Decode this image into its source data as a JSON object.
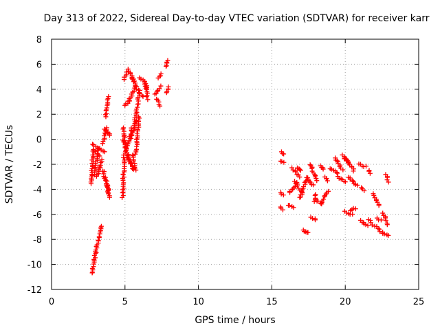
{
  "chart_data": {
    "type": "scatter",
    "title": "Day 313 of 2022, Sidereal Day-to-day VTEC variation (SDTVAR) for receiver karr",
    "xlabel": "GPS time / hours",
    "ylabel": "SDTVAR / TECUs",
    "xlim": [
      0,
      25
    ],
    "ylim": [
      -12,
      8
    ],
    "xticks": [
      0,
      5,
      10,
      15,
      20,
      25
    ],
    "yticks": [
      -12,
      -10,
      -8,
      -6,
      -4,
      -2,
      0,
      2,
      4,
      6,
      8
    ],
    "xtick_labels": [
      "0",
      "5",
      "10",
      "15",
      "20",
      "25"
    ],
    "ytick_labels": [
      "-12",
      "-10",
      "-8",
      "-6",
      "-4",
      "-2",
      "0",
      "2",
      "4",
      "6",
      "8"
    ],
    "grid": true,
    "marker": "+",
    "colors": {
      "points": "#ff0000",
      "grid": "#a0a0a0",
      "axes": "#000000"
    },
    "segments": [
      {
        "x": [
          2.75,
          3.0
        ],
        "y": [
          -10.7,
          -9.0
        ]
      },
      {
        "x": [
          3.0,
          3.4
        ],
        "y": [
          -9.0,
          -6.9
        ]
      },
      {
        "x": [
          2.7,
          2.85
        ],
        "y": [
          -3.6,
          -0.8
        ]
      },
      {
        "x": [
          2.85,
          3.3
        ],
        "y": [
          -0.8,
          -1.3
        ]
      },
      {
        "x": [
          2.8,
          3.6
        ],
        "y": [
          -0.4,
          -1.0
        ]
      },
      {
        "x": [
          2.9,
          3.2
        ],
        "y": [
          -2.8,
          -0.8
        ]
      },
      {
        "x": [
          3.1,
          3.45
        ],
        "y": [
          -3.0,
          -1.6
        ]
      },
      {
        "x": [
          3.5,
          3.75
        ],
        "y": [
          -0.3,
          0.9
        ]
      },
      {
        "x": [
          3.6,
          4.0
        ],
        "y": [
          0.8,
          0.3
        ]
      },
      {
        "x": [
          3.5,
          3.95
        ],
        "y": [
          -2.5,
          -4.6
        ]
      },
      {
        "x": [
          3.7,
          3.9
        ],
        "y": [
          -3.1,
          -4.3
        ]
      },
      {
        "x": [
          3.7,
          3.85
        ],
        "y": [
          1.8,
          3.4
        ]
      },
      {
        "x": [
          4.85,
          4.95
        ],
        "y": [
          -4.6,
          -1.3
        ]
      },
      {
        "x": [
          4.85,
          5.1
        ],
        "y": [
          0.9,
          -0.9
        ]
      },
      {
        "x": [
          4.9,
          5.5
        ],
        "y": [
          -0.1,
          -2.3
        ]
      },
      {
        "x": [
          5.0,
          5.6
        ],
        "y": [
          -1.0,
          -2.4
        ]
      },
      {
        "x": [
          5.2,
          5.45
        ],
        "y": [
          -0.5,
          0.9
        ]
      },
      {
        "x": [
          5.45,
          5.75
        ],
        "y": [
          0.1,
          1.5
        ]
      },
      {
        "x": [
          5.5,
          5.7
        ],
        "y": [
          -1.2,
          -2.5
        ]
      },
      {
        "x": [
          5.75,
          5.95
        ],
        "y": [
          -1.2,
          1.8
        ]
      },
      {
        "x": [
          5.65,
          6.0
        ],
        "y": [
          1.3,
          3.9
        ]
      },
      {
        "x": [
          5.0,
          5.3
        ],
        "y": [
          2.7,
          3.1
        ]
      },
      {
        "x": [
          5.3,
          5.7
        ],
        "y": [
          3.1,
          4.3
        ]
      },
      {
        "x": [
          4.9,
          5.2
        ],
        "y": [
          4.8,
          5.5
        ]
      },
      {
        "x": [
          5.2,
          5.6
        ],
        "y": [
          5.6,
          4.7
        ]
      },
      {
        "x": [
          5.5,
          5.8
        ],
        "y": [
          4.9,
          4.2
        ]
      },
      {
        "x": [
          5.8,
          6.2
        ],
        "y": [
          4.0,
          3.4
        ]
      },
      {
        "x": [
          6.0,
          6.3
        ],
        "y": [
          4.9,
          4.6
        ]
      },
      {
        "x": [
          6.3,
          6.45
        ],
        "y": [
          4.6,
          4.0
        ]
      },
      {
        "x": [
          6.45,
          6.5
        ],
        "y": [
          4.4,
          3.2
        ]
      },
      {
        "x": [
          7.0,
          7.4
        ],
        "y": [
          3.6,
          4.2
        ]
      },
      {
        "x": [
          7.2,
          7.4
        ],
        "y": [
          3.2,
          2.7
        ]
      },
      {
        "x": [
          7.3,
          7.5
        ],
        "y": [
          4.9,
          5.2
        ]
      },
      {
        "x": [
          7.8,
          7.9
        ],
        "y": [
          5.8,
          6.3
        ]
      },
      {
        "x": [
          7.85,
          7.95
        ],
        "y": [
          3.7,
          4.2
        ]
      },
      {
        "x": [
          15.7,
          15.85
        ],
        "y": [
          -1.0,
          -1.2
        ]
      },
      {
        "x": [
          15.65,
          15.8
        ],
        "y": [
          -1.7,
          -1.9
        ]
      },
      {
        "x": [
          15.6,
          15.75
        ],
        "y": [
          -4.2,
          -4.5
        ]
      },
      {
        "x": [
          15.6,
          15.75
        ],
        "y": [
          -5.4,
          -5.6
        ]
      },
      {
        "x": [
          16.2,
          16.7
        ],
        "y": [
          -4.3,
          -3.5
        ]
      },
      {
        "x": [
          16.6,
          17.1
        ],
        "y": [
          -3.4,
          -4.4
        ]
      },
      {
        "x": [
          16.4,
          16.9
        ],
        "y": [
          -2.3,
          -3.0
        ]
      },
      {
        "x": [
          16.7,
          17.0
        ],
        "y": [
          -2.3,
          -2.5
        ]
      },
      {
        "x": [
          16.9,
          17.4
        ],
        "y": [
          -4.7,
          -3.1
        ]
      },
      {
        "x": [
          17.4,
          17.8
        ],
        "y": [
          -3.1,
          -3.7
        ]
      },
      {
        "x": [
          17.6,
          18.1
        ],
        "y": [
          -2.0,
          -3.3
        ]
      },
      {
        "x": [
          17.9,
          18.0
        ],
        "y": [
          -5.0,
          -4.4
        ]
      },
      {
        "x": [
          18.0,
          18.4
        ],
        "y": [
          -4.8,
          -5.2
        ]
      },
      {
        "x": [
          18.3,
          18.8
        ],
        "y": [
          -5.1,
          -4.2
        ]
      },
      {
        "x": [
          18.3,
          18.5
        ],
        "y": [
          -2.1,
          -2.4
        ]
      },
      {
        "x": [
          18.6,
          18.8
        ],
        "y": [
          -3.0,
          -3.3
        ]
      },
      {
        "x": [
          17.7,
          18.0
        ],
        "y": [
          -6.2,
          -6.4
        ]
      },
      {
        "x": [
          17.1,
          17.5
        ],
        "y": [
          -7.3,
          -7.5
        ]
      },
      {
        "x": [
          19.0,
          19.5
        ],
        "y": [
          -2.3,
          -2.7
        ]
      },
      {
        "x": [
          19.3,
          19.8
        ],
        "y": [
          -1.5,
          -2.4
        ]
      },
      {
        "x": [
          19.5,
          20.0
        ],
        "y": [
          -3.0,
          -3.4
        ]
      },
      {
        "x": [
          19.8,
          20.2
        ],
        "y": [
          -1.3,
          -1.8
        ]
      },
      {
        "x": [
          20.0,
          20.6
        ],
        "y": [
          -1.5,
          -2.5
        ]
      },
      {
        "x": [
          20.2,
          20.8
        ],
        "y": [
          -3.0,
          -3.7
        ]
      },
      {
        "x": [
          20.0,
          20.5
        ],
        "y": [
          -5.8,
          -6.0
        ]
      },
      {
        "x": [
          20.4,
          20.7
        ],
        "y": [
          -5.7,
          -5.5
        ]
      },
      {
        "x": [
          20.9,
          21.4
        ],
        "y": [
          -2.0,
          -2.2
        ]
      },
      {
        "x": [
          21.1,
          21.3
        ],
        "y": [
          -3.9,
          -4.1
        ]
      },
      {
        "x": [
          21.0,
          21.5
        ],
        "y": [
          -6.5,
          -6.9
        ]
      },
      {
        "x": [
          21.6,
          21.7
        ],
        "y": [
          -2.5,
          -2.7
        ]
      },
      {
        "x": [
          21.6,
          21.8
        ],
        "y": [
          -6.4,
          -6.8
        ]
      },
      {
        "x": [
          21.9,
          22.3
        ],
        "y": [
          -4.4,
          -5.3
        ]
      },
      {
        "x": [
          22.2,
          22.4
        ],
        "y": [
          -6.3,
          -6.5
        ]
      },
      {
        "x": [
          22.0,
          22.3
        ],
        "y": [
          -6.9,
          -7.2
        ]
      },
      {
        "x": [
          22.4,
          22.9
        ],
        "y": [
          -7.4,
          -7.7
        ]
      },
      {
        "x": [
          22.6,
          22.9
        ],
        "y": [
          -5.9,
          -6.8
        ]
      },
      {
        "x": [
          22.8,
          22.9
        ],
        "y": [
          -2.8,
          -3.4
        ]
      },
      {
        "x": [
          16.1,
          16.5
        ],
        "y": [
          -5.3,
          -5.4
        ]
      }
    ]
  }
}
